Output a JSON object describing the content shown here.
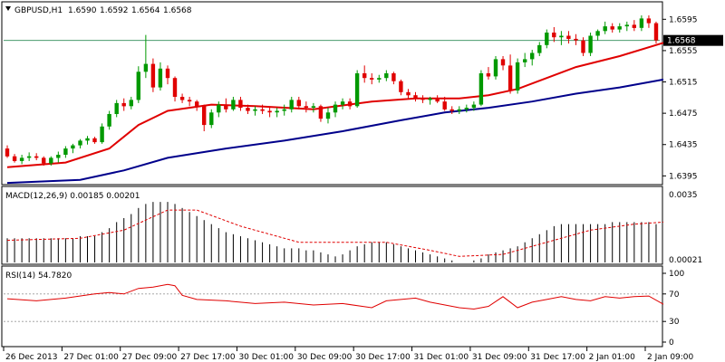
{
  "chart_data": [
    {
      "type": "candlestick",
      "title": "GBPUSD,H1",
      "ohlc_readout": [
        "1.6590",
        "1.6592",
        "1.6564",
        "1.6568"
      ],
      "current_price": 1.6568,
      "current_price_label": "1.6568",
      "ylim": [
        1.6385,
        1.6615
      ],
      "y_ticks": [
        1.6395,
        1.6435,
        1.6475,
        1.6515,
        1.6555,
        1.6595
      ],
      "y_tick_labels": [
        "1.6395",
        "1.6435",
        "1.6475",
        "1.6515",
        "1.6555",
        "1.6595"
      ],
      "x_tick_labels": [
        "26 Dec 2013",
        "27 Dec 01:00",
        "27 Dec 09:00",
        "27 Dec 17:00",
        "30 Dec 01:00",
        "30 Dec 09:00",
        "30 Dec 17:00",
        "31 Dec 01:00",
        "31 Dec 09:00",
        "31 Dec 17:00",
        "2 Jan 01:00",
        "2 Jan 09:00"
      ],
      "candles": [
        [
          1.643,
          1.6434,
          1.6418,
          1.642
        ],
        [
          1.642,
          1.6423,
          1.6412,
          1.6414
        ],
        [
          1.6414,
          1.6422,
          1.641,
          1.6418
        ],
        [
          1.6418,
          1.6425,
          1.6414,
          1.642
        ],
        [
          1.642,
          1.6424,
          1.6415,
          1.6418
        ],
        [
          1.6418,
          1.642,
          1.6408,
          1.6411
        ],
        [
          1.6411,
          1.642,
          1.6408,
          1.6418
        ],
        [
          1.6418,
          1.6426,
          1.6412,
          1.6422
        ],
        [
          1.6422,
          1.6433,
          1.6418,
          1.643
        ],
        [
          1.643,
          1.6436,
          1.6424,
          1.6434
        ],
        [
          1.6434,
          1.6442,
          1.643,
          1.644
        ],
        [
          1.644,
          1.6446,
          1.6435,
          1.6443
        ],
        [
          1.6443,
          1.6445,
          1.6436,
          1.6438
        ],
        [
          1.6438,
          1.6462,
          1.6436,
          1.6458
        ],
        [
          1.6458,
          1.6478,
          1.6454,
          1.6474
        ],
        [
          1.6474,
          1.6492,
          1.647,
          1.6488
        ],
        [
          1.6488,
          1.6494,
          1.6478,
          1.6484
        ],
        [
          1.6484,
          1.6496,
          1.648,
          1.6492
        ],
        [
          1.6492,
          1.6535,
          1.6488,
          1.6528
        ],
        [
          1.6528,
          1.6575,
          1.652,
          1.6538
        ],
        [
          1.6538,
          1.6545,
          1.6502,
          1.6508
        ],
        [
          1.6508,
          1.654,
          1.6504,
          1.6532
        ],
        [
          1.6532,
          1.6536,
          1.6512,
          1.652
        ],
        [
          1.652,
          1.6522,
          1.649,
          1.6496
        ],
        [
          1.6496,
          1.65,
          1.6488,
          1.6492
        ],
        [
          1.6492,
          1.6496,
          1.6484,
          1.649
        ],
        [
          1.649,
          1.6492,
          1.6478,
          1.6484
        ],
        [
          1.6484,
          1.6486,
          1.6452,
          1.646
        ],
        [
          1.646,
          1.648,
          1.6456,
          1.6476
        ],
        [
          1.6476,
          1.649,
          1.647,
          1.6486
        ],
        [
          1.6486,
          1.6494,
          1.6476,
          1.648
        ],
        [
          1.648,
          1.6496,
          1.6478,
          1.6492
        ],
        [
          1.6492,
          1.6496,
          1.6478,
          1.6482
        ],
        [
          1.6482,
          1.6486,
          1.6474,
          1.6478
        ],
        [
          1.6478,
          1.6484,
          1.6472,
          1.648
        ],
        [
          1.648,
          1.6486,
          1.6474,
          1.6478
        ],
        [
          1.6478,
          1.6484,
          1.647,
          1.6476
        ],
        [
          1.6476,
          1.6482,
          1.647,
          1.6478
        ],
        [
          1.6478,
          1.6486,
          1.6472,
          1.648
        ],
        [
          1.648,
          1.6496,
          1.6476,
          1.6492
        ],
        [
          1.6492,
          1.6496,
          1.648,
          1.6484
        ],
        [
          1.6484,
          1.649,
          1.6476,
          1.6482
        ],
        [
          1.6482,
          1.6488,
          1.6476,
          1.6484
        ],
        [
          1.6484,
          1.6486,
          1.6464,
          1.6468
        ],
        [
          1.6468,
          1.6482,
          1.6462,
          1.6476
        ],
        [
          1.6476,
          1.649,
          1.647,
          1.6486
        ],
        [
          1.6486,
          1.6494,
          1.648,
          1.649
        ],
        [
          1.649,
          1.6494,
          1.648,
          1.6484
        ],
        [
          1.6484,
          1.653,
          1.6482,
          1.6526
        ],
        [
          1.6526,
          1.6536,
          1.6514,
          1.652
        ],
        [
          1.652,
          1.6526,
          1.6512,
          1.6518
        ],
        [
          1.6518,
          1.6524,
          1.6514,
          1.652
        ],
        [
          1.652,
          1.653,
          1.6516,
          1.6526
        ],
        [
          1.6526,
          1.6528,
          1.6512,
          1.6516
        ],
        [
          1.6516,
          1.6518,
          1.6498,
          1.6502
        ],
        [
          1.6502,
          1.6506,
          1.6494,
          1.6498
        ],
        [
          1.6498,
          1.6502,
          1.649,
          1.6494
        ],
        [
          1.6494,
          1.6498,
          1.6488,
          1.6492
        ],
        [
          1.6492,
          1.6496,
          1.6486,
          1.6494
        ],
        [
          1.6494,
          1.6498,
          1.6488,
          1.649
        ],
        [
          1.649,
          1.6496,
          1.6478,
          1.648
        ],
        [
          1.648,
          1.6484,
          1.6474,
          1.6478
        ],
        [
          1.6478,
          1.6484,
          1.6474,
          1.648
        ],
        [
          1.648,
          1.6486,
          1.6476,
          1.6482
        ],
        [
          1.6482,
          1.649,
          1.6478,
          1.6486
        ],
        [
          1.6486,
          1.653,
          1.6484,
          1.6526
        ],
        [
          1.6526,
          1.6534,
          1.6518,
          1.6522
        ],
        [
          1.6522,
          1.6548,
          1.6518,
          1.6544
        ],
        [
          1.6544,
          1.6548,
          1.653,
          1.6536
        ],
        [
          1.6536,
          1.655,
          1.65,
          1.6504
        ],
        [
          1.6504,
          1.6545,
          1.65,
          1.654
        ],
        [
          1.654,
          1.6552,
          1.6534,
          1.6544
        ],
        [
          1.6544,
          1.6556,
          1.6536,
          1.6552
        ],
        [
          1.6552,
          1.6566,
          1.6548,
          1.6562
        ],
        [
          1.6562,
          1.6582,
          1.6558,
          1.6578
        ],
        [
          1.6578,
          1.6585,
          1.6566,
          1.6572
        ],
        [
          1.6572,
          1.658,
          1.6562,
          1.6574
        ],
        [
          1.6574,
          1.658,
          1.6564,
          1.657
        ],
        [
          1.657,
          1.6576,
          1.6562,
          1.6568
        ],
        [
          1.6568,
          1.6572,
          1.6548,
          1.6552
        ],
        [
          1.6552,
          1.6578,
          1.6548,
          1.6574
        ],
        [
          1.6574,
          1.6582,
          1.6568,
          1.658
        ],
        [
          1.658,
          1.6592,
          1.6576,
          1.6586
        ],
        [
          1.6586,
          1.659,
          1.6578,
          1.6582
        ],
        [
          1.6582,
          1.659,
          1.6578,
          1.6586
        ],
        [
          1.6586,
          1.6592,
          1.658,
          1.6588
        ],
        [
          1.6588,
          1.6594,
          1.658,
          1.6584
        ],
        [
          1.6584,
          1.66,
          1.658,
          1.6596
        ],
        [
          1.6596,
          1.66,
          1.6584,
          1.659
        ],
        [
          1.659,
          1.6592,
          1.6564,
          1.6568
        ]
      ],
      "ma_fast": {
        "color": "#e00000",
        "values": [
          [
            0,
            1.6406
          ],
          [
            8,
            1.6412
          ],
          [
            14,
            1.643
          ],
          [
            18,
            1.646
          ],
          [
            22,
            1.6478
          ],
          [
            28,
            1.6486
          ],
          [
            34,
            1.6484
          ],
          [
            42,
            1.648
          ],
          [
            50,
            1.649
          ],
          [
            56,
            1.6494
          ],
          [
            62,
            1.6494
          ],
          [
            66,
            1.6498
          ],
          [
            70,
            1.6506
          ],
          [
            74,
            1.652
          ],
          [
            78,
            1.6534
          ],
          [
            84,
            1.6548
          ],
          [
            90,
            1.6565
          ]
        ]
      },
      "ma_slow": {
        "color": "#00008b",
        "values": [
          [
            0,
            1.6386
          ],
          [
            10,
            1.639
          ],
          [
            16,
            1.6402
          ],
          [
            22,
            1.6418
          ],
          [
            30,
            1.643
          ],
          [
            38,
            1.644
          ],
          [
            46,
            1.6452
          ],
          [
            54,
            1.6466
          ],
          [
            60,
            1.6476
          ],
          [
            66,
            1.6482
          ],
          [
            72,
            1.649
          ],
          [
            78,
            1.65
          ],
          [
            84,
            1.6508
          ],
          [
            90,
            1.6518
          ]
        ]
      }
    },
    {
      "type": "bar",
      "title": "MACD(12,26,9) 0.00185 0.00201",
      "ylim": [
        0,
        0.0035
      ],
      "y_tick_labels": [
        "0.0035",
        "0.00021"
      ],
      "values": [
        0.0012,
        0.0012,
        0.0012,
        0.0012,
        0.0012,
        0.0012,
        0.0012,
        0.0012,
        0.0012,
        0.0012,
        0.0013,
        0.0013,
        0.0013,
        0.0015,
        0.0017,
        0.002,
        0.0022,
        0.0024,
        0.0027,
        0.0029,
        0.003,
        0.003,
        0.003,
        0.0029,
        0.0027,
        0.0025,
        0.0023,
        0.0021,
        0.0019,
        0.0017,
        0.0015,
        0.0014,
        0.0013,
        0.0012,
        0.0011,
        0.001,
        0.0009,
        0.0008,
        0.0007,
        0.0007,
        0.0007,
        0.0006,
        0.0006,
        0.0005,
        0.0004,
        0.0003,
        0.0004,
        0.0006,
        0.0008,
        0.0009,
        0.001,
        0.001,
        0.001,
        0.0009,
        0.0008,
        0.0007,
        0.0006,
        0.0005,
        0.0004,
        0.0003,
        0.0002,
        0.0001,
        0.0,
        0.0,
        0.0001,
        0.0002,
        0.0004,
        0.0005,
        0.0006,
        0.0007,
        0.0008,
        0.001,
        0.0012,
        0.0014,
        0.0016,
        0.0018,
        0.0019,
        0.0019,
        0.0019,
        0.0019,
        0.0019,
        0.0019,
        0.0019,
        0.002,
        0.002,
        0.002,
        0.002,
        0.002,
        0.002,
        0.0019
      ],
      "signal": [
        [
          0,
          0.0011
        ],
        [
          10,
          0.0012
        ],
        [
          16,
          0.0016
        ],
        [
          22,
          0.0026
        ],
        [
          26,
          0.0026
        ],
        [
          32,
          0.0018
        ],
        [
          40,
          0.001
        ],
        [
          46,
          0.001
        ],
        [
          52,
          0.001
        ],
        [
          58,
          0.0006
        ],
        [
          62,
          0.0003
        ],
        [
          68,
          0.0004
        ],
        [
          74,
          0.001
        ],
        [
          80,
          0.0016
        ],
        [
          86,
          0.0019
        ],
        [
          90,
          0.002
        ]
      ],
      "signal_color": "#e00000"
    },
    {
      "type": "line",
      "title": "RSI(14) 54.7820",
      "ylim": [
        0,
        100
      ],
      "y_ticks": [
        0,
        30,
        70,
        100
      ],
      "y_tick_labels": [
        "0",
        "30",
        "70",
        "100"
      ],
      "levels": [
        30,
        70
      ],
      "color": "#e00000",
      "values": [
        [
          0,
          63
        ],
        [
          4,
          60
        ],
        [
          8,
          64
        ],
        [
          12,
          70
        ],
        [
          14,
          72
        ],
        [
          16,
          70
        ],
        [
          18,
          78
        ],
        [
          20,
          80
        ],
        [
          22,
          84
        ],
        [
          23,
          82
        ],
        [
          24,
          68
        ],
        [
          26,
          62
        ],
        [
          30,
          60
        ],
        [
          34,
          56
        ],
        [
          38,
          58
        ],
        [
          42,
          54
        ],
        [
          46,
          56
        ],
        [
          50,
          50
        ],
        [
          52,
          60
        ],
        [
          54,
          62
        ],
        [
          56,
          64
        ],
        [
          58,
          58
        ],
        [
          62,
          50
        ],
        [
          64,
          48
        ],
        [
          66,
          52
        ],
        [
          68,
          66
        ],
        [
          70,
          50
        ],
        [
          72,
          58
        ],
        [
          74,
          62
        ],
        [
          76,
          66
        ],
        [
          78,
          62
        ],
        [
          80,
          60
        ],
        [
          82,
          66
        ],
        [
          84,
          64
        ],
        [
          86,
          66
        ],
        [
          88,
          67
        ],
        [
          90,
          55
        ]
      ]
    }
  ]
}
